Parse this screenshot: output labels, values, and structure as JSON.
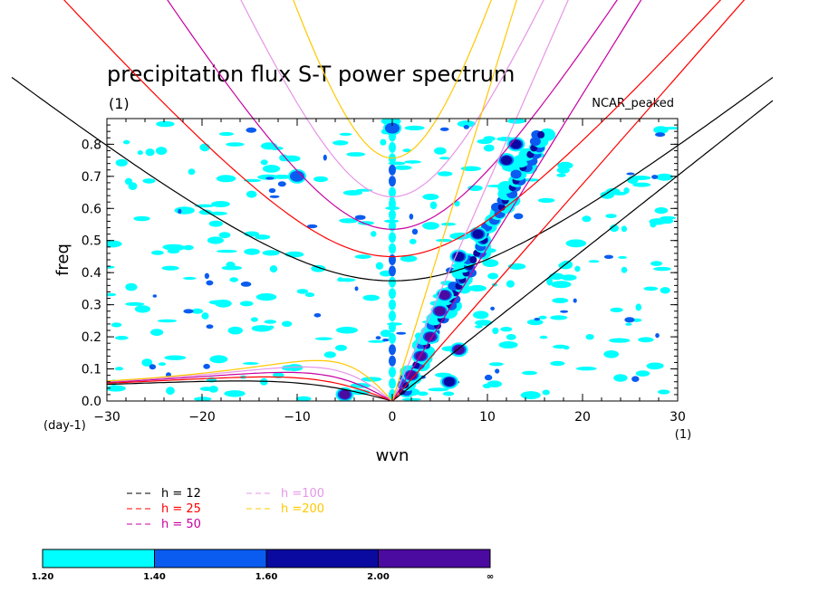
{
  "chart_data": {
    "type": "heatmap",
    "title": "precipitation flux S-T power spectrum",
    "title_unit": "(1)",
    "model_label": "NCAR_peaked",
    "xlabel": "wvn",
    "xunit": "(1)",
    "ylabel": "freq",
    "yunit": "(day-1)",
    "xlim": [
      -30,
      30
    ],
    "ylim": [
      0,
      0.88
    ],
    "xticks": [
      -30,
      -20,
      -10,
      0,
      10,
      20,
      30
    ],
    "yticks": [
      0.0,
      0.1,
      0.2,
      0.3,
      0.4,
      0.5,
      0.6,
      0.7,
      0.8
    ],
    "xtick_labels": [
      "−30",
      "−20",
      "−10",
      "0",
      "10",
      "20",
      "30"
    ],
    "ytick_labels": [
      "0.0",
      "0.1",
      "0.2",
      "0.3",
      "0.4",
      "0.5",
      "0.6",
      "0.7",
      "0.8"
    ],
    "grid": false,
    "levels": [
      "1.20",
      "1.40",
      "1.60",
      "2.00",
      "∞"
    ],
    "level_colors": [
      "#00ffff",
      "#0a5cf0",
      "#0a0aa0",
      "#4b0aa0"
    ],
    "dispersion_legend": [
      {
        "label": "h = 12",
        "h": 12,
        "color": "#000000"
      },
      {
        "label": "h = 25",
        "h": 25,
        "color": "#ff0000"
      },
      {
        "label": "h = 50",
        "h": 50,
        "color": "#c800a0"
      },
      {
        "label": "h =100",
        "h": 100,
        "color": "#e696e6"
      },
      {
        "label": "h =200",
        "h": 200,
        "color": "#ffc800"
      }
    ],
    "spectral_peaks": [
      {
        "wvn": 2,
        "freq": 0.08,
        "level": 3
      },
      {
        "wvn": 3,
        "freq": 0.14,
        "level": 3
      },
      {
        "wvn": 4,
        "freq": 0.2,
        "level": 3
      },
      {
        "wvn": 5,
        "freq": 0.28,
        "level": 3
      },
      {
        "wvn": 5.5,
        "freq": 0.33,
        "level": 3
      },
      {
        "wvn": 7,
        "freq": 0.16,
        "level": 3
      },
      {
        "wvn": 6,
        "freq": 0.06,
        "level": 2
      },
      {
        "wvn": 7,
        "freq": 0.45,
        "level": 2
      },
      {
        "wvn": 9,
        "freq": 0.52,
        "level": 2
      },
      {
        "wvn": 12,
        "freq": 0.75,
        "level": 2
      },
      {
        "wvn": 13,
        "freq": 0.8,
        "level": 2
      },
      {
        "wvn": -5,
        "freq": 0.02,
        "level": 3
      },
      {
        "wvn": 0,
        "freq": 0.85,
        "level": 1
      },
      {
        "wvn": -10,
        "freq": 0.7,
        "level": 1
      }
    ]
  }
}
